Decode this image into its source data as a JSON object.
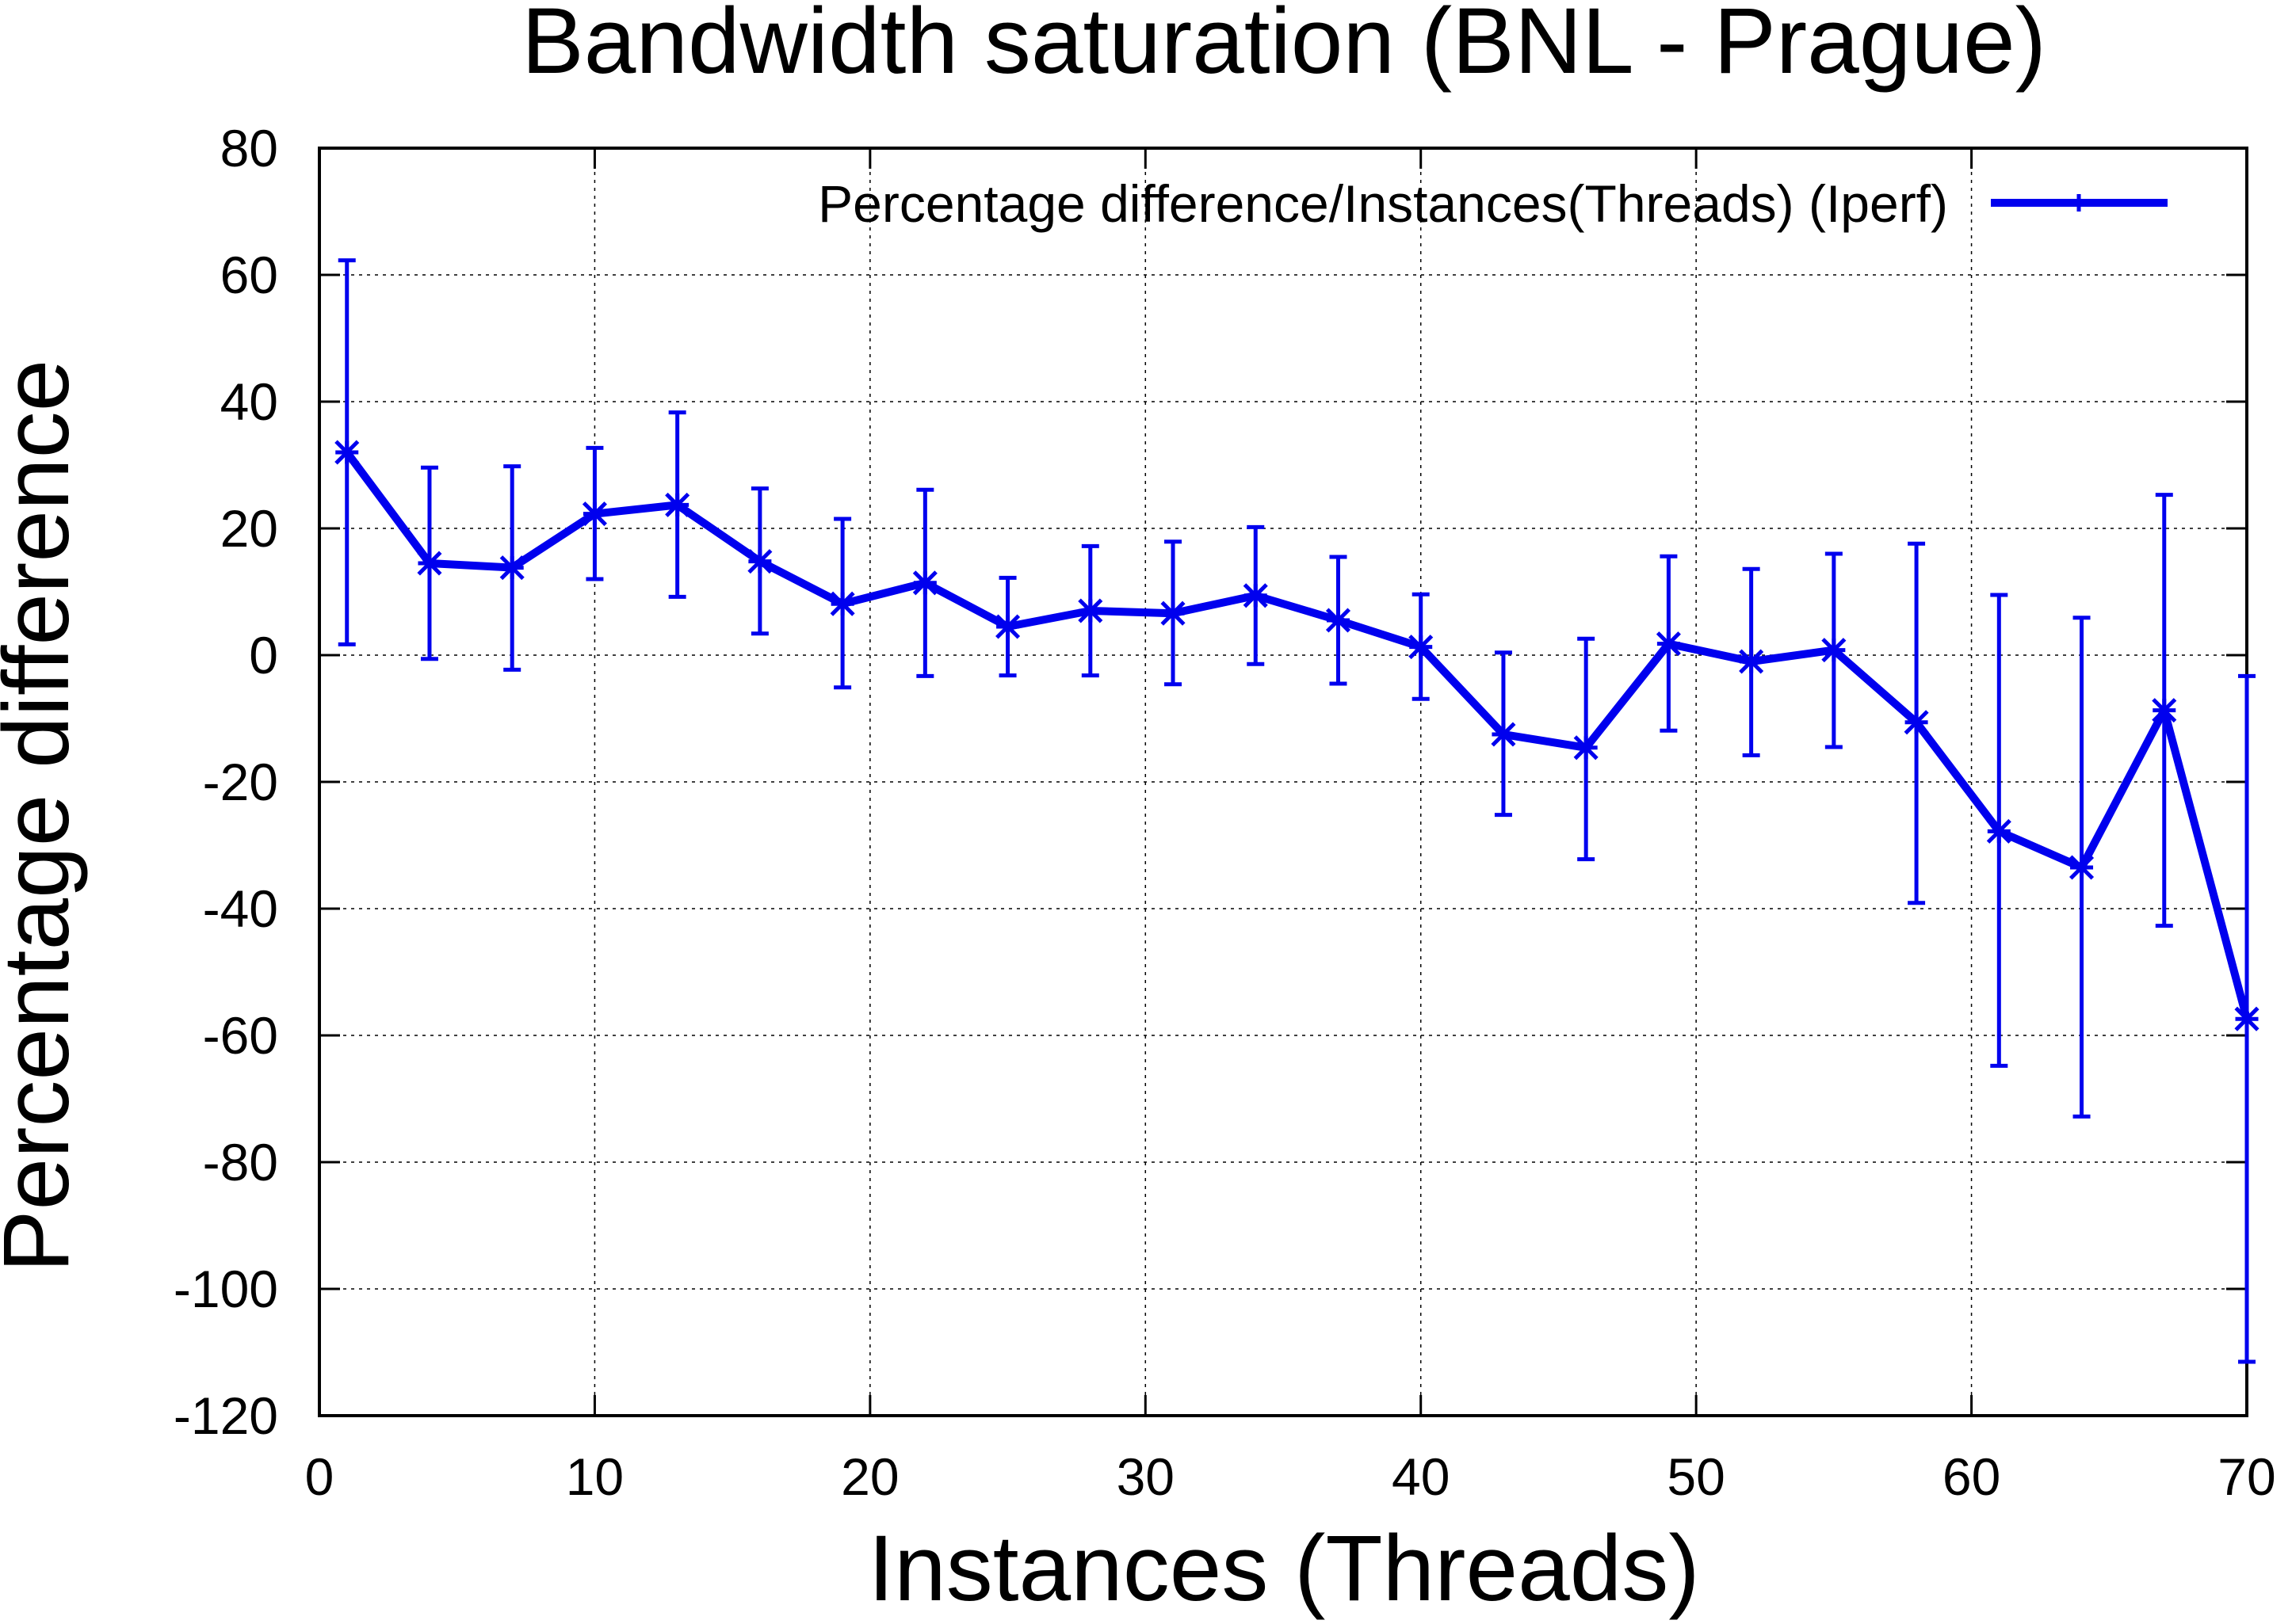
{
  "chart_data": {
    "type": "line",
    "title": "Bandwidth saturation (BNL - Prague)",
    "xlabel": "Instances (Threads)",
    "ylabel": "Percentage difference",
    "xlim": [
      0,
      70
    ],
    "ylim": [
      -120,
      80
    ],
    "xticks": [
      "0",
      "10",
      "20",
      "30",
      "40",
      "50",
      "60",
      "70"
    ],
    "yticks": [
      "80",
      "60",
      "40",
      "20",
      "0",
      "-20",
      "-40",
      "-60",
      "-80",
      "-100",
      "-120"
    ],
    "grid": true,
    "legend_position": "top-right",
    "series": [
      {
        "name": "Percentage difference/Instances(Threads) (Iperf)",
        "color": "#0000ee",
        "marker": "star",
        "x": [
          1,
          4,
          7,
          10,
          13,
          16,
          19,
          22,
          25,
          28,
          31,
          34,
          37,
          40,
          43,
          46,
          49,
          52,
          55,
          58,
          61,
          64,
          67,
          70
        ],
        "y": [
          32,
          14.5,
          13.8,
          22.3,
          23.7,
          14.8,
          8.1,
          11.4,
          4.5,
          7,
          6.6,
          9.4,
          5.5,
          1.3,
          -12.5,
          -14.6,
          1.8,
          -1,
          0.8,
          -10.6,
          -27.8,
          -33.5,
          -8.7,
          -57.4
        ],
        "y_low": [
          1.7,
          -0.6,
          -2.3,
          12,
          9.2,
          3.4,
          -5.1,
          -3.3,
          -3.2,
          -3.2,
          -4.6,
          -1.4,
          -4.5,
          -6.9,
          -25.2,
          -32.2,
          -11.9,
          -15.8,
          -14.5,
          -39.1,
          -64.8,
          -72.8,
          -42.7,
          -111.5
        ],
        "y_high": [
          62.3,
          29.6,
          29.8,
          32.7,
          38.3,
          26.3,
          21.5,
          26.1,
          12.2,
          17.2,
          17.9,
          20.2,
          15.5,
          9.6,
          0.4,
          2.6,
          15.6,
          13.6,
          16,
          17.6,
          9.5,
          5.9,
          25.3,
          -3.3
        ]
      }
    ]
  }
}
